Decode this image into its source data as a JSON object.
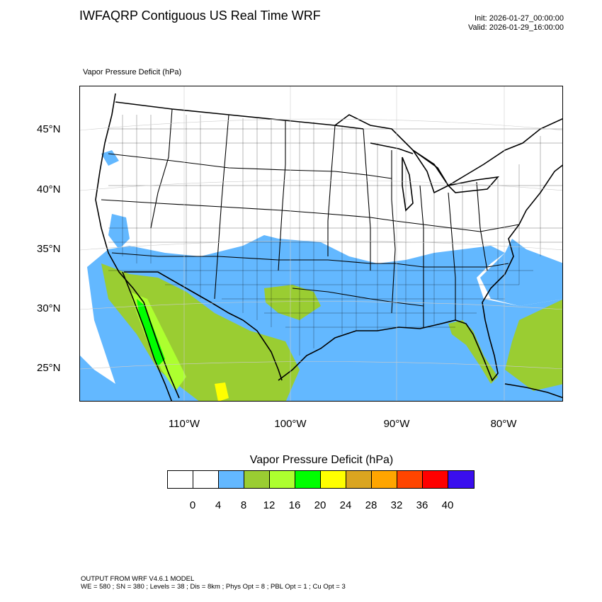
{
  "header": {
    "title": "IWFAQRP Contiguous US Real Time WRF",
    "init": "Init: 2026-01-27_00:00:00",
    "valid": "Valid: 2026-01-29_16:00:00"
  },
  "map": {
    "subtitle": "Vapor Pressure Deficit   (hPa)",
    "lat_labels": [
      "45°N",
      "40°N",
      "35°N",
      "30°N",
      "25°N"
    ],
    "lon_labels": [
      "110°W",
      "100°W",
      "90°W",
      "80°W"
    ],
    "colors": {
      "ocean": "#ffffff",
      "land_default": "#ffffff",
      "boundary": "#000000"
    }
  },
  "colorbar": {
    "title": "Vapor Pressure Deficit  (hPa)",
    "colors": [
      "#ffffff",
      "#ffffff",
      "#63b8ff",
      "#9acd32",
      "#adff2f",
      "#00ff00",
      "#ffff00",
      "#daa520",
      "#ffa500",
      "#ff4500",
      "#ff0000",
      "#3a0eee"
    ],
    "ticks": [
      "0",
      "4",
      "8",
      "12",
      "16",
      "20",
      "24",
      "28",
      "32",
      "36",
      "40"
    ]
  },
  "footer": {
    "line1": "OUTPUT FROM WRF V4.6.1 MODEL",
    "line2": "WE = 580 ; SN = 380 ; Levels = 38 ; Dis = 8km ; Phys Opt = 8 ; PBL Opt = 1 ; Cu Opt = 3"
  }
}
